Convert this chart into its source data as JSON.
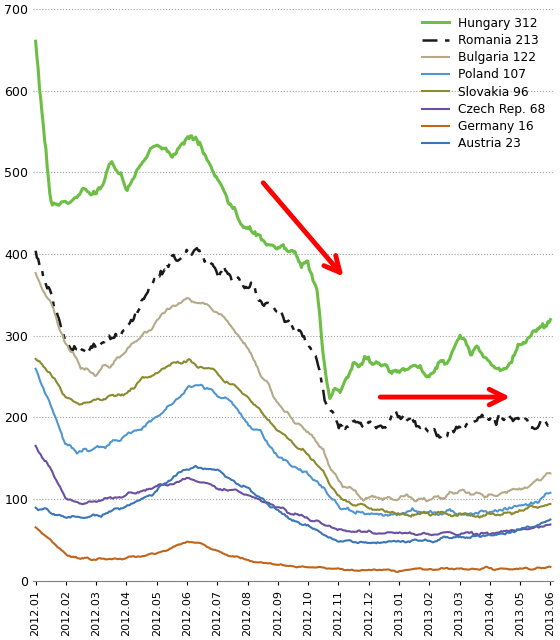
{
  "title": "",
  "ylabel": "",
  "xlabel": "",
  "ylim": [
    0,
    700
  ],
  "yticks": [
    0,
    100,
    200,
    300,
    400,
    500,
    600,
    700
  ],
  "x_labels": [
    "2012.01",
    "2012.02",
    "2012.03",
    "2012.04",
    "2012.05",
    "2012.06",
    "2012.07",
    "2012.08",
    "2012.09",
    "2012.10",
    "2012.11",
    "2012.12",
    "2013.01",
    "2013.02",
    "2013.03",
    "2013.04",
    "2013.05",
    "2013.06"
  ],
  "legend": [
    {
      "label": "Hungary 312",
      "color": "#6dbe45",
      "lw": 2.2,
      "ls": "-"
    },
    {
      "label": "Romania 213",
      "color": "#1a1a1a",
      "lw": 1.8,
      "ls": "-."
    },
    {
      "label": "Bulgaria 122",
      "color": "#b5a98a",
      "lw": 1.5,
      "ls": "-"
    },
    {
      "label": "Poland 107",
      "color": "#4f96d0",
      "lw": 1.5,
      "ls": "-"
    },
    {
      "label": "Slovakia 96",
      "color": "#8a8a2e",
      "lw": 1.5,
      "ls": "-"
    },
    {
      "label": "Czech Rep. 68",
      "color": "#6b4fa0",
      "lw": 1.5,
      "ls": "-"
    },
    {
      "label": "Germany 16",
      "color": "#c0641a",
      "lw": 1.5,
      "ls": "-"
    },
    {
      "label": "Austria 23",
      "color": "#3a75b5",
      "lw": 1.5,
      "ls": "-"
    }
  ],
  "background_color": "#ffffff",
  "grid_color": "#a0a0a0",
  "grid_ls": ":"
}
